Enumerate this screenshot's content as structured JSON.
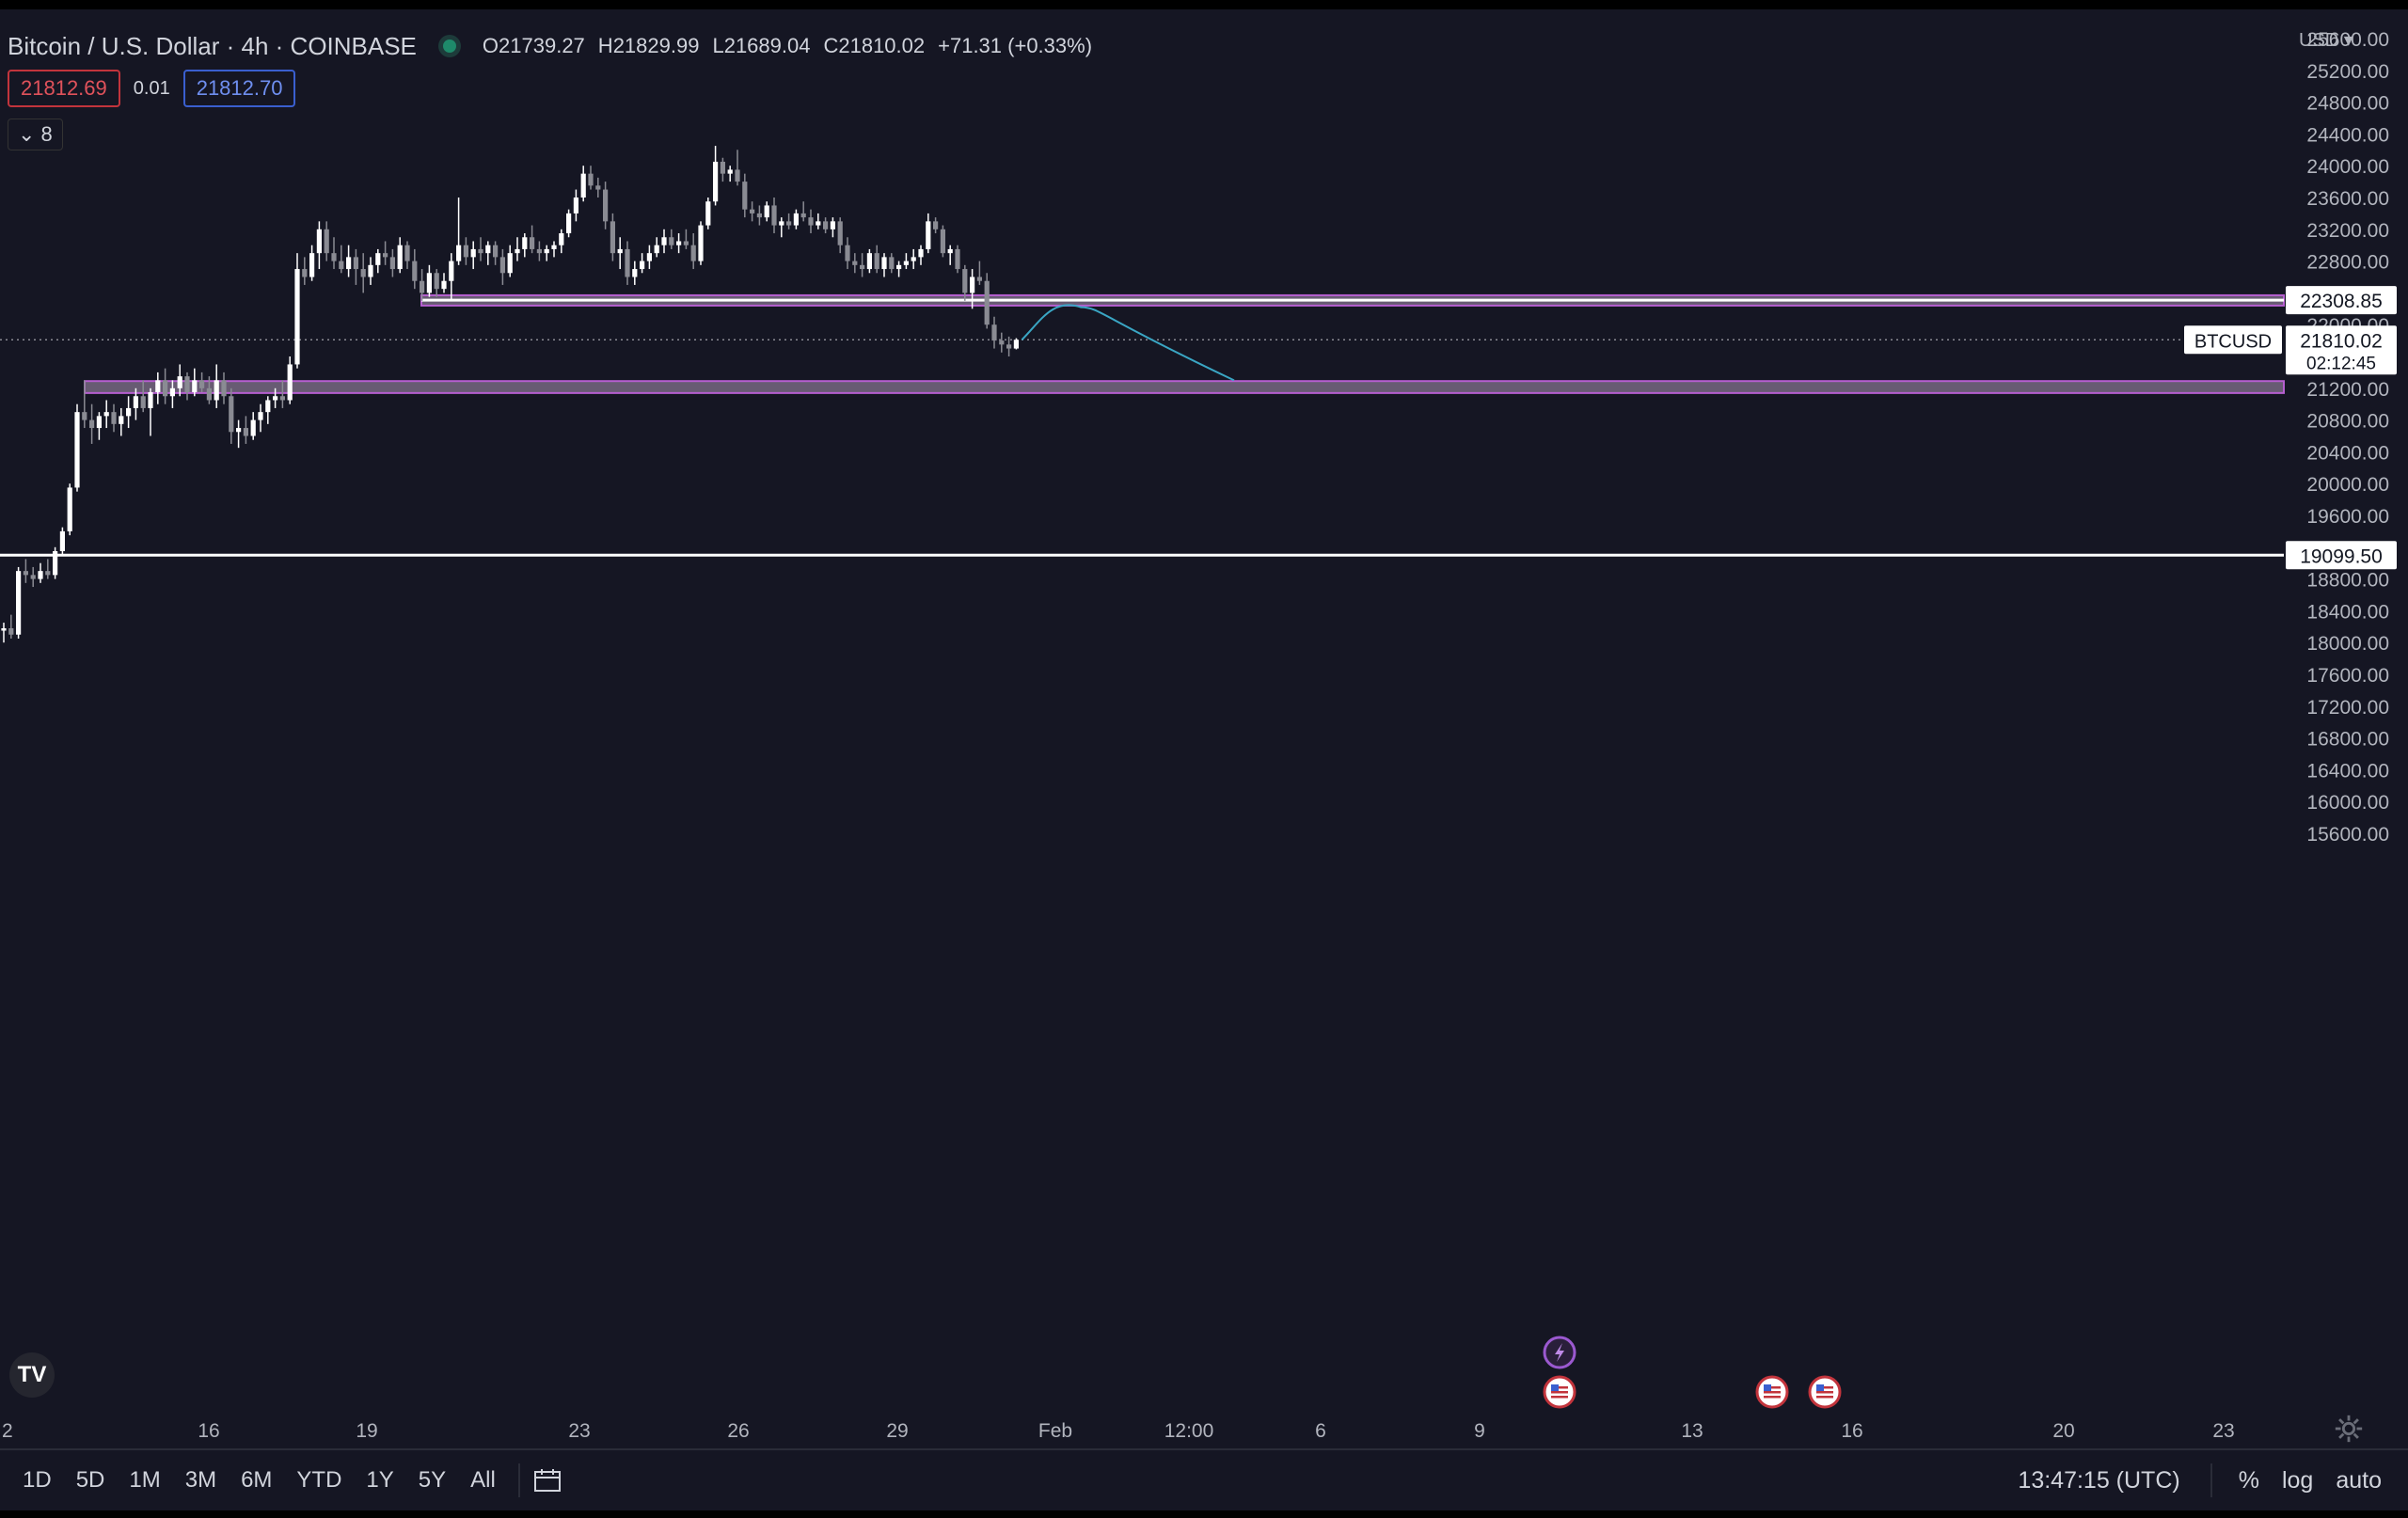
{
  "header": {
    "title": "Bitcoin / U.S. Dollar · 4h · COINBASE",
    "ohlc": {
      "o_label": "O",
      "o": "21739.27",
      "h_label": "H",
      "h": "21829.99",
      "l_label": "L",
      "l": "21689.04",
      "c_label": "C",
      "c": "21810.02",
      "change": "+71.31 (+0.33%)"
    },
    "sell": "21812.69",
    "spread": "0.01",
    "buy": "21812.70",
    "indicators_count": "8"
  },
  "currency": "USD",
  "bottom": {
    "ranges": [
      "1D",
      "5D",
      "1M",
      "3M",
      "6M",
      "YTD",
      "1Y",
      "5Y",
      "All"
    ],
    "time": "13:47:15 (UTC)",
    "percent": "%",
    "log": "log",
    "auto": "auto"
  },
  "colors": {
    "bg": "#151623",
    "up": "#ffffff",
    "down": "#8a8b93",
    "zone": "#a08aa8",
    "zone_border": "#b65fd0",
    "path": "#3aa6c4"
  },
  "chart_data": {
    "type": "candlestick",
    "symbol": "BTCUSD",
    "interval": "4h",
    "y_ticks": [
      25600,
      25200,
      24800,
      24400,
      24000,
      23600,
      23200,
      22800,
      22000,
      21200,
      20800,
      20400,
      20000,
      19600,
      18800,
      18400,
      18000,
      17600,
      17200,
      16800,
      16400,
      16000,
      15600
    ],
    "x_ticks": [
      "2",
      "16",
      "19",
      "23",
      "26",
      "29",
      "Feb",
      "12:00",
      "6",
      "9",
      "13",
      "16",
      "20",
      "23"
    ],
    "ylim": [
      15300,
      25800
    ],
    "last_price": 21810.02,
    "last_price_label": "21810.02",
    "countdown": "02:12:45",
    "horizontal_levels": [
      {
        "price": 22308.85,
        "label": "22308.85"
      },
      {
        "price": 19099.5,
        "label": "19099.50"
      }
    ],
    "zones": [
      {
        "top": 22370,
        "bottom": 22240
      },
      {
        "top": 21290,
        "bottom": 21140
      }
    ],
    "projection": [
      [
        21810,
        0
      ],
      [
        22220,
        8
      ],
      [
        21300,
        20
      ]
    ],
    "events": [
      "lightning",
      "US",
      "US",
      "US"
    ],
    "candles": [
      [
        18150,
        18250,
        18000,
        18180
      ],
      [
        18180,
        18350,
        18050,
        18100
      ],
      [
        18100,
        18950,
        18050,
        18900
      ],
      [
        18900,
        19050,
        18750,
        18850
      ],
      [
        18850,
        18950,
        18700,
        18800
      ],
      [
        18800,
        19000,
        18750,
        18900
      ],
      [
        18900,
        19050,
        18800,
        18850
      ],
      [
        18850,
        19200,
        18800,
        19150
      ],
      [
        19150,
        19450,
        19100,
        19400
      ],
      [
        19400,
        20000,
        19350,
        19950
      ],
      [
        19950,
        21000,
        19900,
        20900
      ],
      [
        20900,
        21300,
        20700,
        20800
      ],
      [
        20800,
        21000,
        20500,
        20700
      ],
      [
        20700,
        20900,
        20550,
        20850
      ],
      [
        20850,
        21050,
        20700,
        20900
      ],
      [
        20900,
        21000,
        20650,
        20750
      ],
      [
        20750,
        20950,
        20600,
        20850
      ],
      [
        20850,
        21100,
        20700,
        20950
      ],
      [
        20950,
        21200,
        20800,
        21100
      ],
      [
        21100,
        21300,
        20900,
        20950
      ],
      [
        20950,
        21200,
        20600,
        21150
      ],
      [
        21150,
        21400,
        21000,
        21300
      ],
      [
        21300,
        21450,
        21000,
        21100
      ],
      [
        21100,
        21300,
        20950,
        21200
      ],
      [
        21200,
        21500,
        21100,
        21350
      ],
      [
        21350,
        21400,
        21050,
        21150
      ],
      [
        21150,
        21450,
        21100,
        21300
      ],
      [
        21300,
        21400,
        21150,
        21200
      ],
      [
        21200,
        21350,
        21000,
        21050
      ],
      [
        21050,
        21500,
        20950,
        21300
      ],
      [
        21300,
        21400,
        21000,
        21100
      ],
      [
        21100,
        21200,
        20500,
        20650
      ],
      [
        20650,
        20800,
        20450,
        20700
      ],
      [
        20700,
        20850,
        20500,
        20600
      ],
      [
        20600,
        20900,
        20550,
        20800
      ],
      [
        20800,
        21000,
        20650,
        20900
      ],
      [
        20900,
        21100,
        20750,
        21050
      ],
      [
        21050,
        21200,
        20950,
        21100
      ],
      [
        21100,
        21300,
        20950,
        21050
      ],
      [
        21050,
        21600,
        21000,
        21500
      ],
      [
        21500,
        22900,
        21450,
        22700
      ],
      [
        22700,
        22850,
        22500,
        22600
      ],
      [
        22600,
        23000,
        22550,
        22900
      ],
      [
        22900,
        23300,
        22700,
        23200
      ],
      [
        23200,
        23300,
        22800,
        22900
      ],
      [
        22900,
        23100,
        22700,
        22800
      ],
      [
        22800,
        23000,
        22650,
        22700
      ],
      [
        22700,
        23000,
        22600,
        22850
      ],
      [
        22850,
        22950,
        22500,
        22700
      ],
      [
        22700,
        22900,
        22400,
        22600
      ],
      [
        22600,
        22850,
        22500,
        22750
      ],
      [
        22750,
        22950,
        22650,
        22900
      ],
      [
        22900,
        23050,
        22750,
        22850
      ],
      [
        22850,
        22950,
        22600,
        22700
      ],
      [
        22700,
        23100,
        22650,
        23000
      ],
      [
        23000,
        23050,
        22700,
        22800
      ],
      [
        22800,
        22950,
        22450,
        22550
      ],
      [
        22550,
        22700,
        22300,
        22400
      ],
      [
        22400,
        22750,
        22350,
        22650
      ],
      [
        22650,
        22700,
        22350,
        22450
      ],
      [
        22450,
        22650,
        22400,
        22550
      ],
      [
        22550,
        22900,
        22300,
        22800
      ],
      [
        22800,
        23600,
        22750,
        23000
      ],
      [
        23000,
        23100,
        22750,
        22850
      ],
      [
        22850,
        23050,
        22700,
        22950
      ],
      [
        22950,
        23100,
        22800,
        22900
      ],
      [
        22900,
        23050,
        22750,
        23000
      ],
      [
        23000,
        23050,
        22750,
        22850
      ],
      [
        22850,
        22950,
        22500,
        22650
      ],
      [
        22650,
        23000,
        22600,
        22900
      ],
      [
        22900,
        23100,
        22800,
        22950
      ],
      [
        22950,
        23150,
        22850,
        23100
      ],
      [
        23100,
        23250,
        22900,
        22950
      ],
      [
        22950,
        23050,
        22800,
        22900
      ],
      [
        22900,
        23000,
        22800,
        22950
      ],
      [
        22950,
        23050,
        22850,
        23000
      ],
      [
        23000,
        23200,
        22900,
        23150
      ],
      [
        23150,
        23450,
        23100,
        23400
      ],
      [
        23400,
        23700,
        23300,
        23600
      ],
      [
        23600,
        24000,
        23550,
        23900
      ],
      [
        23900,
        24000,
        23700,
        23750
      ],
      [
        23750,
        23850,
        23600,
        23700
      ],
      [
        23700,
        23800,
        23200,
        23300
      ],
      [
        23300,
        23400,
        22800,
        22900
      ],
      [
        22900,
        23100,
        22700,
        22950
      ],
      [
        22950,
        23050,
        22500,
        22600
      ],
      [
        22600,
        22800,
        22500,
        22700
      ],
      [
        22700,
        22900,
        22650,
        22800
      ],
      [
        22800,
        23000,
        22700,
        22900
      ],
      [
        22900,
        23100,
        22850,
        23000
      ],
      [
        23000,
        23200,
        22900,
        23100
      ],
      [
        23100,
        23200,
        22950,
        23000
      ],
      [
        23000,
        23150,
        22900,
        23050
      ],
      [
        23050,
        23200,
        22950,
        23000
      ],
      [
        23000,
        23150,
        22700,
        22800
      ],
      [
        22800,
        23300,
        22750,
        23250
      ],
      [
        23250,
        23600,
        23200,
        23550
      ],
      [
        23550,
        24250,
        23500,
        24050
      ],
      [
        24050,
        24100,
        23800,
        23900
      ],
      [
        23900,
        24000,
        23800,
        23950
      ],
      [
        23950,
        24200,
        23750,
        23800
      ],
      [
        23800,
        23900,
        23350,
        23450
      ],
      [
        23450,
        23550,
        23300,
        23400
      ],
      [
        23400,
        23500,
        23250,
        23350
      ],
      [
        23350,
        23550,
        23300,
        23500
      ],
      [
        23500,
        23600,
        23150,
        23250
      ],
      [
        23250,
        23350,
        23100,
        23300
      ],
      [
        23300,
        23400,
        23200,
        23250
      ],
      [
        23250,
        23450,
        23200,
        23400
      ],
      [
        23400,
        23550,
        23300,
        23350
      ],
      [
        23350,
        23450,
        23150,
        23250
      ],
      [
        23250,
        23400,
        23200,
        23300
      ],
      [
        23300,
        23350,
        23150,
        23200
      ],
      [
        23200,
        23350,
        23100,
        23300
      ],
      [
        23300,
        23350,
        22900,
        23000
      ],
      [
        23000,
        23100,
        22700,
        22800
      ],
      [
        22800,
        22900,
        22650,
        22750
      ],
      [
        22750,
        22900,
        22600,
        22700
      ],
      [
        22700,
        22950,
        22650,
        22900
      ],
      [
        22900,
        23000,
        22650,
        22700
      ],
      [
        22700,
        22900,
        22600,
        22850
      ],
      [
        22850,
        22900,
        22650,
        22700
      ],
      [
        22700,
        22800,
        22600,
        22750
      ],
      [
        22750,
        22900,
        22700,
        22800
      ],
      [
        22800,
        22950,
        22700,
        22850
      ],
      [
        22850,
        23000,
        22750,
        22950
      ],
      [
        22950,
        23400,
        22900,
        23300
      ],
      [
        23300,
        23350,
        23150,
        23200
      ],
      [
        23200,
        23250,
        22850,
        22900
      ],
      [
        22900,
        23000,
        22750,
        22950
      ],
      [
        22950,
        23000,
        22650,
        22700
      ],
      [
        22700,
        22750,
        22300,
        22400
      ],
      [
        22400,
        22700,
        22200,
        22600
      ],
      [
        22600,
        22800,
        22500,
        22550
      ],
      [
        22550,
        22650,
        21950,
        22000
      ],
      [
        22000,
        22100,
        21700,
        21800
      ],
      [
        21800,
        21900,
        21650,
        21750
      ],
      [
        21750,
        21850,
        21600,
        21700
      ],
      [
        21700,
        21830,
        21689,
        21810
      ]
    ]
  }
}
